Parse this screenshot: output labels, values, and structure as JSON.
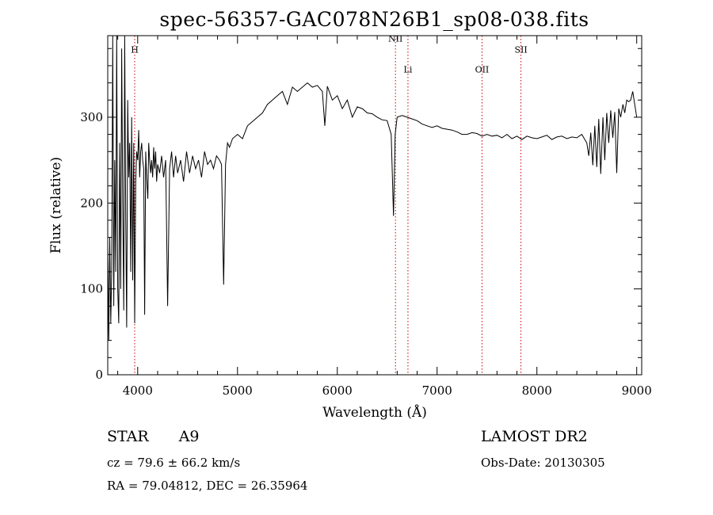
{
  "title": "spec-56357-GAC078N26B1_sp08-038.fits",
  "info": {
    "class": "STAR",
    "subclass": "A9",
    "cz_text": "cz = 79.6 ± 66.2 km/s",
    "radec_text": "RA =  79.04812, DEC =  26.35964",
    "survey": "LAMOST DR2",
    "obs_date": "Obs-Date: 20130305"
  },
  "chart_data": {
    "type": "line",
    "title": "spec-56357-GAC078N26B1_sp08-038.fits",
    "xlabel": "Wavelength (Å)",
    "ylabel": "Flux (relative)",
    "xlim": [
      3700,
      9050
    ],
    "ylim": [
      0,
      395
    ],
    "xticks": [
      4000,
      5000,
      6000,
      7000,
      8000,
      9000
    ],
    "yticks": [
      0,
      100,
      200,
      300
    ],
    "grid": false,
    "line_color": "#000000",
    "marker_color": "#cc0000",
    "lines": [
      {
        "label": "H",
        "x": 3970,
        "label_y": 375
      },
      {
        "label": "NII",
        "x": 6583,
        "label_y": 388
      },
      {
        "label": "Li",
        "x": 6708,
        "label_y": 352
      },
      {
        "label": "OII",
        "x": 7450,
        "label_y": 352
      },
      {
        "label": "SII",
        "x": 7840,
        "label_y": 375
      }
    ],
    "series": [
      {
        "x": [
          3700,
          3710,
          3720,
          3730,
          3740,
          3750,
          3760,
          3770,
          3780,
          3790,
          3800,
          3810,
          3820,
          3830,
          3840,
          3850,
          3860,
          3870,
          3880,
          3890,
          3900,
          3910,
          3920,
          3930,
          3940,
          3950,
          3960,
          3970,
          3980,
          3990,
          4000,
          4010,
          4020,
          4030,
          4040,
          4050,
          4060,
          4070,
          4080,
          4090,
          4102,
          4110,
          4120,
          4130,
          4140,
          4150,
          4160,
          4170,
          4180,
          4190,
          4200,
          4220,
          4240,
          4260,
          4280,
          4300,
          4320,
          4340,
          4360,
          4380,
          4400,
          4430,
          4460,
          4490,
          4520,
          4550,
          4580,
          4610,
          4640,
          4670,
          4700,
          4730,
          4760,
          4790,
          4820,
          4840,
          4861,
          4880,
          4900,
          4920,
          4950,
          5000,
          5050,
          5100,
          5150,
          5200,
          5250,
          5300,
          5350,
          5400,
          5450,
          5500,
          5550,
          5600,
          5650,
          5700,
          5750,
          5800,
          5850,
          5875,
          5900,
          5950,
          6000,
          6050,
          6100,
          6150,
          6200,
          6250,
          6300,
          6350,
          6400,
          6450,
          6500,
          6540,
          6563,
          6580,
          6600,
          6650,
          6700,
          6750,
          6800,
          6850,
          6900,
          6950,
          7000,
          7050,
          7100,
          7150,
          7200,
          7250,
          7300,
          7350,
          7400,
          7450,
          7500,
          7550,
          7600,
          7650,
          7700,
          7750,
          7800,
          7850,
          7900,
          7950,
          8000,
          8050,
          8100,
          8150,
          8200,
          8250,
          8300,
          8350,
          8400,
          8450,
          8500,
          8520,
          8540,
          8560,
          8580,
          8600,
          8620,
          8640,
          8662,
          8680,
          8700,
          8720,
          8740,
          8760,
          8780,
          8800,
          8820,
          8840,
          8862,
          8880,
          8900,
          8920,
          8940,
          8960,
          8980,
          9000
        ],
        "values": [
          150,
          40,
          160,
          60,
          120,
          395,
          80,
          250,
          120,
          395,
          100,
          60,
          270,
          100,
          380,
          200,
          75,
          395,
          180,
          55,
          320,
          230,
          270,
          120,
          300,
          110,
          270,
          60,
          225,
          260,
          250,
          285,
          230,
          260,
          270,
          250,
          240,
          70,
          260,
          230,
          205,
          270,
          250,
          235,
          250,
          230,
          265,
          240,
          260,
          225,
          245,
          235,
          255,
          230,
          250,
          80,
          240,
          260,
          230,
          255,
          235,
          250,
          225,
          260,
          235,
          255,
          240,
          250,
          230,
          260,
          245,
          250,
          240,
          255,
          250,
          245,
          105,
          245,
          270,
          265,
          275,
          280,
          275,
          290,
          295,
          300,
          305,
          315,
          320,
          325,
          330,
          315,
          335,
          330,
          335,
          340,
          335,
          337,
          330,
          290,
          336,
          320,
          325,
          310,
          320,
          300,
          312,
          310,
          305,
          304,
          300,
          297,
          296,
          280,
          185,
          280,
          300,
          302,
          300,
          298,
          296,
          292,
          290,
          288,
          290,
          287,
          286,
          285,
          283,
          280,
          280,
          282,
          281,
          278,
          280,
          278,
          279,
          276,
          280,
          275,
          278,
          274,
          278,
          276,
          275,
          277,
          279,
          274,
          277,
          278,
          275,
          277,
          276,
          280,
          270,
          255,
          282,
          244,
          290,
          242,
          298,
          234,
          300,
          250,
          305,
          270,
          308,
          276,
          306,
          235,
          310,
          300,
          315,
          305,
          320,
          318,
          320,
          330,
          315,
          300
        ]
      }
    ]
  }
}
